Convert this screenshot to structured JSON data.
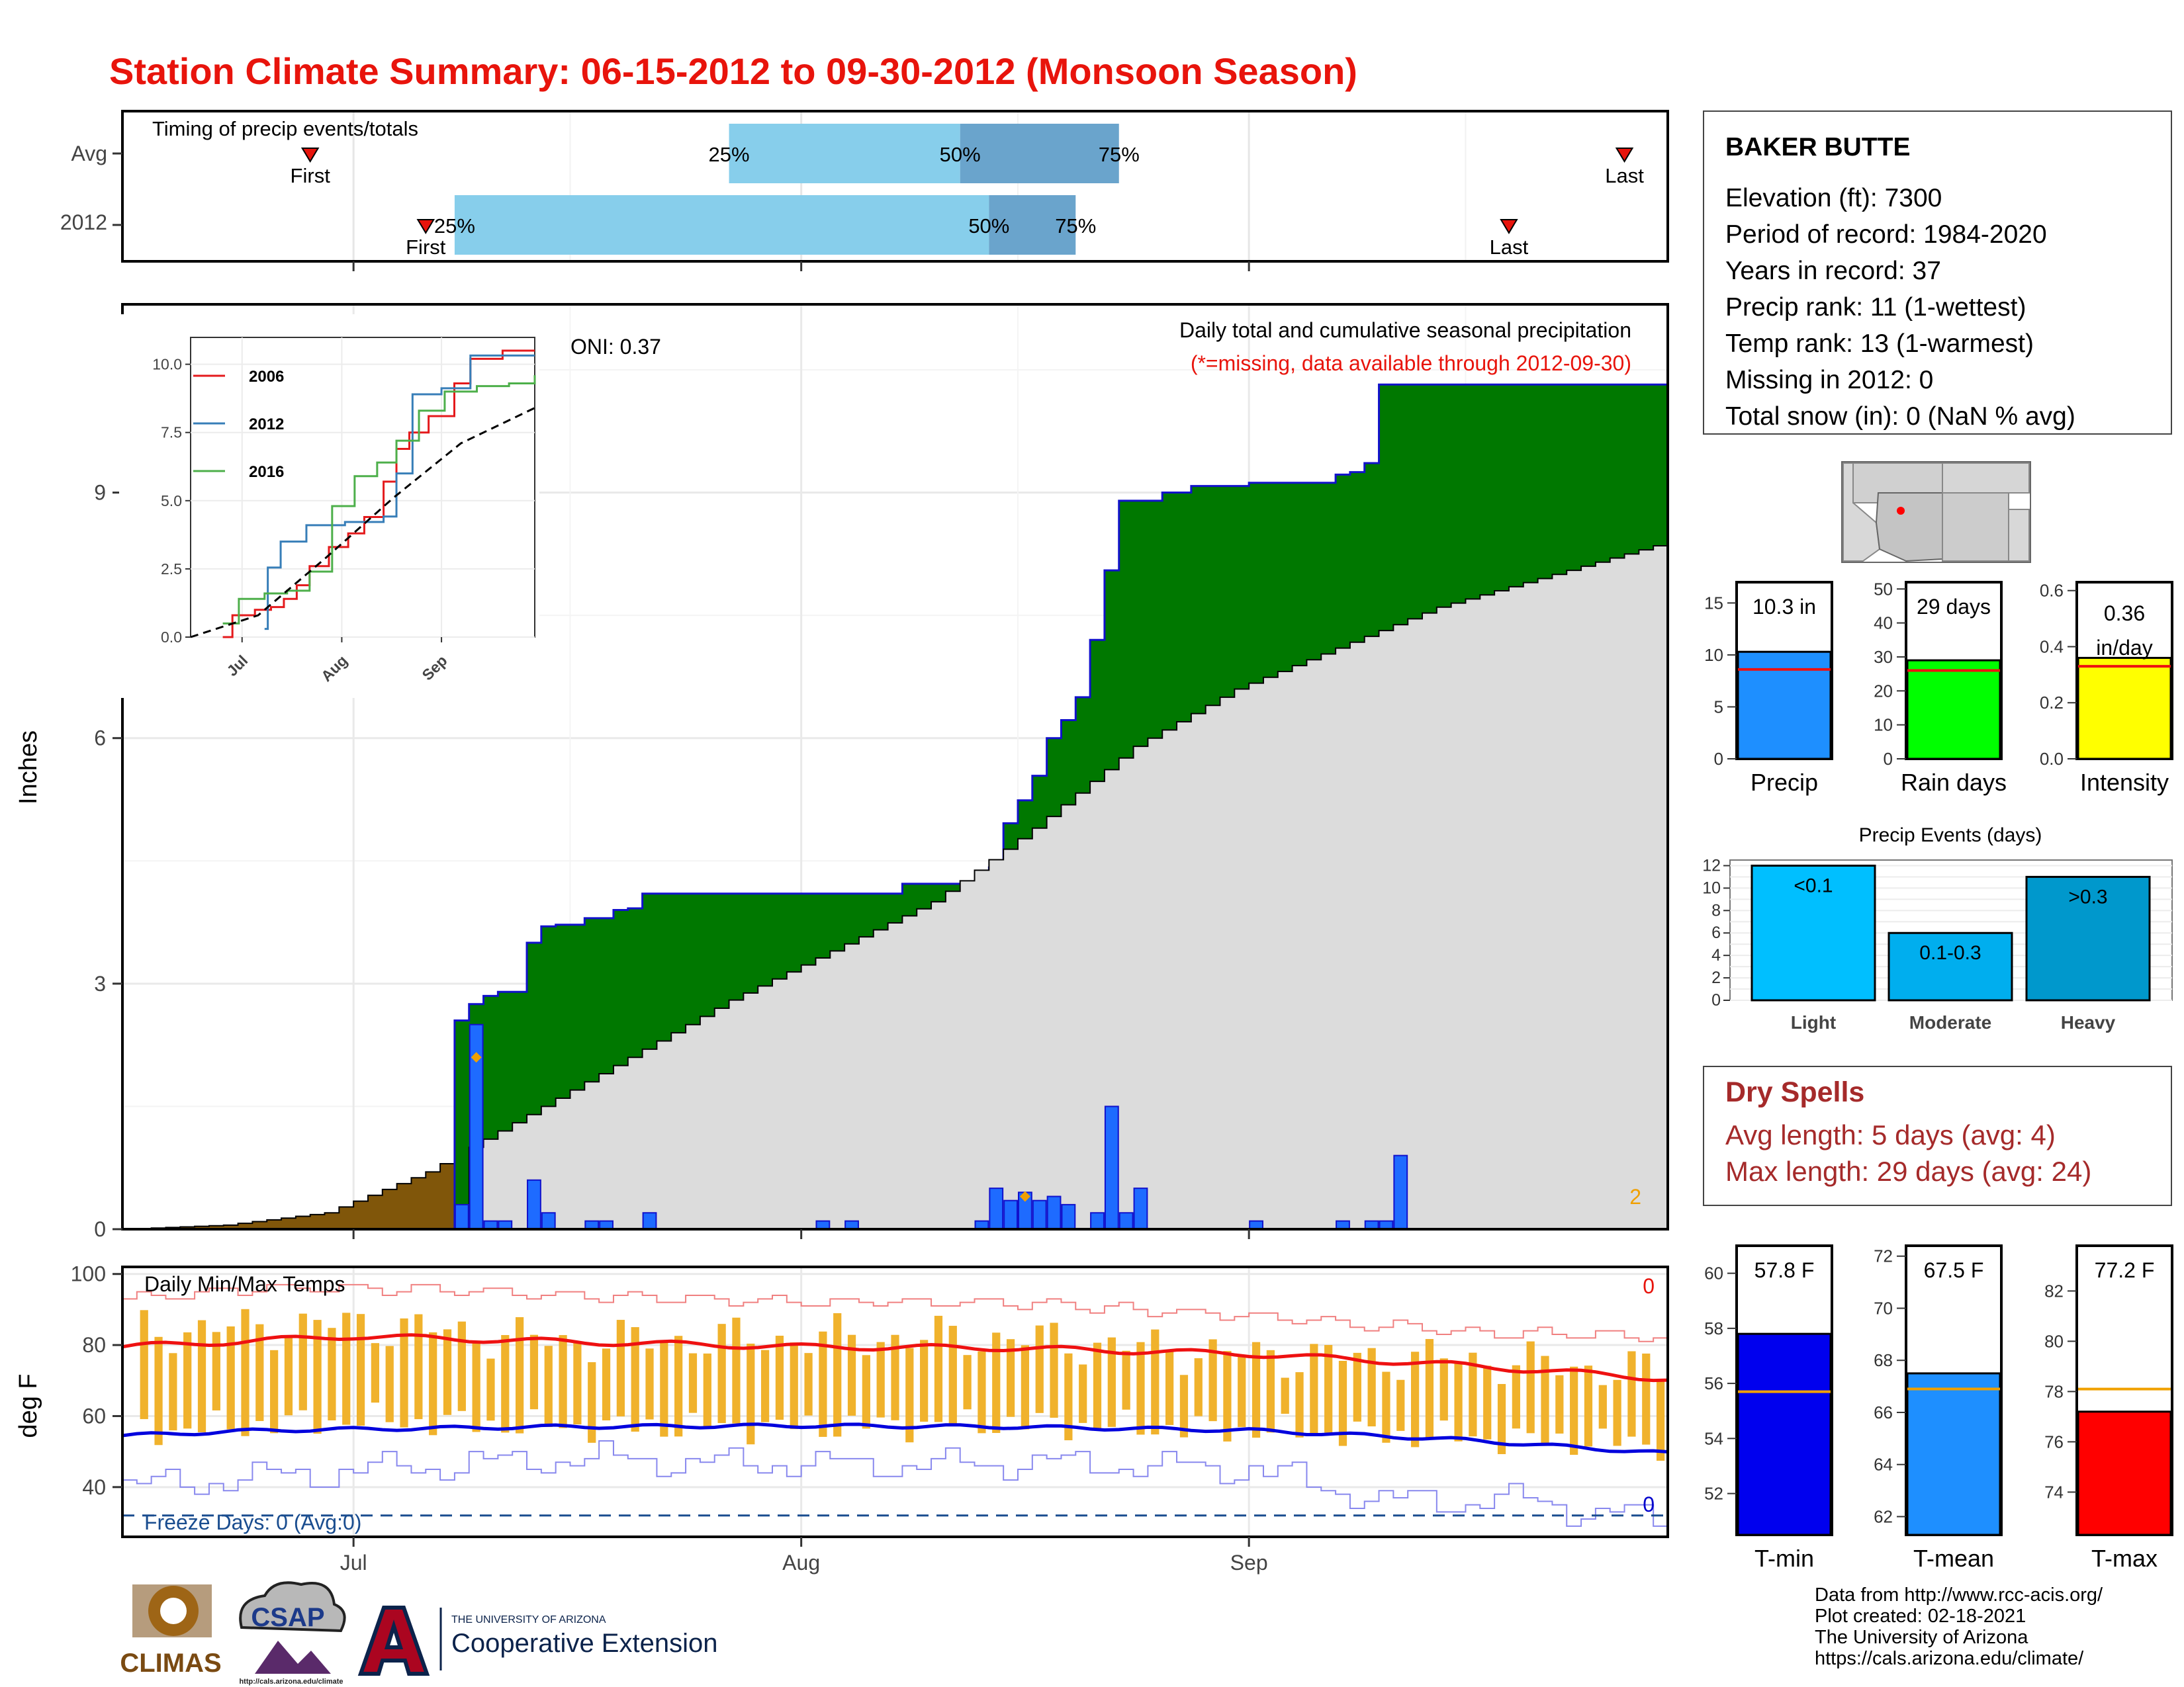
{
  "title": "Station Climate Summary: 06-15-2012 to 09-30-2012 (Monsoon Season)",
  "colors": {
    "title": "#e8140c",
    "cum_2012": "#007800",
    "cum_avg": "#dcdcdc",
    "early": "#80560a",
    "daily_bar": "#1e6bff",
    "outline": "#1111cc",
    "timing_light": "#87ceeb",
    "timing_dark": "#6aa4cc",
    "tmax": "#ee1111",
    "tmin": "#0000dd",
    "range_bar": "#f0b22c",
    "dry_spells": "#a52a2a"
  },
  "timing": {
    "title": "Timing of precip events/totals",
    "rows": [
      {
        "label": "Avg",
        "first": "First",
        "last": "Last",
        "p25": "25%",
        "p50": "50%",
        "p75": "75%",
        "first_date": "2012-06-28",
        "p25_date": "2012-07-27",
        "p50_date": "2012-08-12",
        "p75_date": "2012-08-23",
        "last_date": "2012-09-27"
      },
      {
        "label": "2012",
        "first": "First",
        "last": "Last",
        "p25": "25%",
        "p50": "50%",
        "p75": "75%",
        "first_date": "2012-07-06",
        "p25_date": "2012-07-08",
        "p50_date": "2012-08-14",
        "p75_date": "2012-08-20",
        "last_date": "2012-09-19"
      }
    ]
  },
  "precip": {
    "ylabel": "Inches",
    "caption": "Daily total and cumulative seasonal precipitation",
    "note": "(*=missing, data available through 2012-09-30)",
    "oni": "ONI: 0.37",
    "corner_count": "2",
    "yticks": [
      "0",
      "3",
      "6",
      "9"
    ],
    "ytick_values": [
      0,
      3,
      6,
      9
    ],
    "xticks": [
      "Jul",
      "Aug",
      "Sep"
    ],
    "ylim": [
      0,
      11.3
    ]
  },
  "inset": {
    "yticks": [
      "0.0",
      "2.5",
      "5.0",
      "7.5",
      "10.0"
    ],
    "xticks": [
      "Jul",
      "Aug",
      "Sep"
    ],
    "legend": [
      {
        "label": "2006",
        "color": "#e41a1c"
      },
      {
        "label": "2012",
        "color": "#377eb8"
      },
      {
        "label": "2016",
        "color": "#4daf4a"
      }
    ]
  },
  "temps": {
    "ylabel": "deg F",
    "title": "Daily Min/Max Temps",
    "freeze": "Freeze Days: 0 (Avg:0)",
    "count_top": "0",
    "count_bottom": "0",
    "yticks": [
      "40",
      "60",
      "80",
      "100"
    ],
    "ytick_values": [
      40,
      60,
      80,
      100
    ],
    "ylim": [
      26,
      102
    ]
  },
  "station": {
    "name": "BAKER BUTTE",
    "lines": [
      "Elevation (ft): 7300",
      "Period of record: 1984-2020",
      "Years in record: 37",
      "Precip rank: 11 (1-wettest)",
      "Temp rank: 13 (1-warmest)",
      "Missing in 2012: 0",
      "Total snow (in): 0 (NaN % avg)"
    ]
  },
  "summary_bars": [
    {
      "name": "Precip",
      "label_value": "10.3 in",
      "value": 10.3,
      "avg": 8.6,
      "ylim": [
        0,
        17
      ],
      "yticks": [
        "0",
        "5",
        "10",
        "15"
      ],
      "ytick_values": [
        0,
        5,
        10,
        15
      ],
      "color": "#1e8fff"
    },
    {
      "name": "Rain days",
      "label_value": "29 days",
      "value": 29,
      "avg": 26,
      "ylim": [
        0,
        52
      ],
      "yticks": [
        "0",
        "10",
        "20",
        "30",
        "40",
        "50"
      ],
      "ytick_values": [
        0,
        10,
        20,
        30,
        40,
        50
      ],
      "color": "#00ff00"
    },
    {
      "name": "Intensity",
      "label_value": "0.36",
      "label_value2": "in/day",
      "value": 0.36,
      "avg": 0.33,
      "ylim": [
        0,
        0.63
      ],
      "yticks": [
        "0.0",
        "0.2",
        "0.4",
        "0.6"
      ],
      "ytick_values": [
        0,
        0.2,
        0.4,
        0.6
      ],
      "color": "#ffff00"
    }
  ],
  "precip_events": {
    "title": "Precip Events (days)",
    "yticks": [
      "0",
      "2",
      "4",
      "6",
      "8",
      "10",
      "12"
    ],
    "ytick_values": [
      0,
      2,
      4,
      6,
      8,
      10,
      12
    ],
    "ylim": [
      0,
      12.5
    ],
    "bars": [
      {
        "category": "Light",
        "label": "<0.1",
        "value": 12,
        "color": "#00bfff"
      },
      {
        "category": "Moderate",
        "label": "0.1-0.3",
        "value": 6,
        "color": "#00aeee"
      },
      {
        "category": "Heavy",
        "label": ">0.3",
        "value": 11,
        "color": "#0098cc"
      }
    ]
  },
  "dry_spells": {
    "title": "Dry Spells",
    "avg_length": "Avg length: 5 days (avg: 4)",
    "max_length": "Max length: 29 days (avg: 24)"
  },
  "temp_bars": [
    {
      "name": "T-min",
      "label_value": "57.8 F",
      "value": 57.8,
      "avg": 55.7,
      "ylim": [
        50.5,
        61
      ],
      "yticks": [
        "52",
        "54",
        "56",
        "58",
        "60"
      ],
      "ytick_values": [
        52,
        54,
        56,
        58,
        60
      ],
      "color": "#0000ee"
    },
    {
      "name": "T-mean",
      "label_value": "67.5 F",
      "value": 67.5,
      "avg": 66.9,
      "ylim": [
        61.3,
        72.4
      ],
      "yticks": [
        "62",
        "64",
        "66",
        "68",
        "70",
        "72"
      ],
      "ytick_values": [
        62,
        64,
        66,
        68,
        70,
        72
      ],
      "color": "#1e8fff"
    },
    {
      "name": "T-max",
      "label_value": "77.2 F",
      "value": 77.2,
      "avg": 78.1,
      "ylim": [
        72.3,
        83.8
      ],
      "yticks": [
        "74",
        "76",
        "78",
        "80",
        "82"
      ],
      "ytick_values": [
        74,
        76,
        78,
        80,
        82
      ],
      "color": "#ff0000"
    }
  ],
  "footer": {
    "lines": [
      "Data from http://www.rcc-acis.org/",
      "Plot created: 02-18-2021",
      "The University of Arizona",
      "https://cals.arizona.edu/climate/"
    ],
    "climas": "CLIMAS",
    "csap": "CSAP",
    "csap_url": "http://cals.arizona.edu/climate",
    "ua_small": "THE UNIVERSITY OF ARIZONA",
    "ua_large": "Cooperative Extension"
  },
  "chart_data": [
    {
      "type": "area",
      "title": "Daily total and cumulative seasonal precipitation",
      "ylabel": "Inches",
      "x_range": [
        "2012-06-15",
        "2012-09-30"
      ],
      "ylim": [
        0,
        11.3
      ],
      "series": [
        {
          "name": "2012",
          "dates": [
            "2012-07-08",
            "2012-07-09",
            "2012-07-10",
            "2012-07-11",
            "2012-07-13",
            "2012-07-14",
            "2012-07-15",
            "2012-07-17",
            "2012-07-19",
            "2012-07-20",
            "2012-07-21",
            "2012-07-25",
            "2012-08-08",
            "2012-08-09",
            "2012-08-14",
            "2012-08-15",
            "2012-08-16",
            "2012-08-17",
            "2012-08-18",
            "2012-08-19",
            "2012-08-20",
            "2012-08-21",
            "2012-08-22",
            "2012-08-23",
            "2012-08-26",
            "2012-08-27",
            "2012-08-28",
            "2012-09-01",
            "2012-09-07",
            "2012-09-08",
            "2012-09-09",
            "2012-09-10"
          ],
          "values": [
            2.55,
            2.75,
            2.85,
            2.9,
            3.5,
            3.7,
            3.72,
            3.8,
            3.9,
            3.92,
            4.1,
            4.1,
            4.22,
            4.22,
            4.42,
            4.96,
            5.24,
            5.54,
            6.0,
            6.22,
            6.5,
            7.2,
            8.05,
            8.9,
            9.0,
            9.0,
            9.08,
            9.12,
            9.22,
            9.25,
            9.36,
            10.32
          ]
        },
        {
          "name": "Avg",
          "dates": [
            "2012-06-15",
            "2012-06-22",
            "2012-06-29",
            "2012-07-06",
            "2012-07-13",
            "2012-07-20",
            "2012-07-27",
            "2012-08-03",
            "2012-08-10",
            "2012-08-17",
            "2012-08-24",
            "2012-08-31",
            "2012-09-07",
            "2012-09-14",
            "2012-09-21",
            "2012-09-30"
          ],
          "values": [
            0.0,
            0.05,
            0.2,
            0.7,
            1.4,
            2.1,
            2.8,
            3.4,
            4.0,
            4.9,
            5.9,
            6.6,
            7.1,
            7.6,
            7.95,
            8.4
          ]
        }
      ],
      "daily_precip": {
        "dates": [
          "2012-07-08",
          "2012-07-09",
          "2012-07-10",
          "2012-07-11",
          "2012-07-13",
          "2012-07-14",
          "2012-07-17",
          "2012-07-18",
          "2012-07-21",
          "2012-08-02",
          "2012-08-04",
          "2012-08-13",
          "2012-08-14",
          "2012-08-15",
          "2012-08-16",
          "2012-08-17",
          "2012-08-18",
          "2012-08-19",
          "2012-08-21",
          "2012-08-22",
          "2012-08-23",
          "2012-08-24",
          "2012-09-01",
          "2012-09-07",
          "2012-09-09",
          "2012-09-10",
          "2012-09-11"
        ],
        "values": [
          0.3,
          2.5,
          0.1,
          0.1,
          0.6,
          0.2,
          0.1,
          0.1,
          0.2,
          0.1,
          0.1,
          0.1,
          0.5,
          0.35,
          0.45,
          0.35,
          0.4,
          0.3,
          0.2,
          1.5,
          0.2,
          0.5,
          0.1,
          0.1,
          0.1,
          0.1,
          0.9
        ]
      },
      "daily_median_markers": {
        "dates": [
          "2012-07-09",
          "2012-08-16"
        ],
        "values": [
          2.1,
          0.4
        ]
      }
    },
    {
      "type": "line",
      "title": "",
      "ylim": [
        0,
        10.5
      ],
      "x_range": [
        "2012-06-15",
        "2012-09-30"
      ],
      "series": [
        {
          "name": "2006",
          "dates": [
            "2012-06-25",
            "2012-06-28",
            "2012-07-05",
            "2012-07-10",
            "2012-07-14",
            "2012-07-18",
            "2012-07-22",
            "2012-07-28",
            "2012-08-03",
            "2012-08-08",
            "2012-08-14",
            "2012-08-18",
            "2012-08-22",
            "2012-08-28",
            "2012-09-05",
            "2012-09-10",
            "2012-09-20",
            "2012-09-30"
          ],
          "values": [
            0.0,
            0.8,
            1.0,
            1.1,
            1.4,
            1.9,
            2.6,
            3.3,
            3.8,
            4.4,
            5.7,
            6.9,
            7.5,
            8.1,
            9.3,
            10.2,
            10.5,
            10.5
          ]
        },
        {
          "name": "2012",
          "dates": [
            "2012-07-08",
            "2012-07-09",
            "2012-07-13",
            "2012-07-21",
            "2012-08-02",
            "2012-08-14",
            "2012-08-18",
            "2012-08-23",
            "2012-09-01",
            "2012-09-10",
            "2012-09-30"
          ],
          "values": [
            0.3,
            2.55,
            3.5,
            4.1,
            4.22,
            4.42,
            6.0,
            8.9,
            9.12,
            10.32,
            10.32
          ]
        },
        {
          "name": "2016",
          "dates": [
            "2012-06-25",
            "2012-06-30",
            "2012-07-08",
            "2012-07-15",
            "2012-07-22",
            "2012-07-29",
            "2012-08-05",
            "2012-08-12",
            "2012-08-18",
            "2012-08-25",
            "2012-09-02",
            "2012-09-12",
            "2012-09-22",
            "2012-09-30"
          ],
          "values": [
            0.5,
            1.4,
            1.6,
            1.7,
            2.4,
            4.8,
            5.9,
            6.4,
            7.2,
            8.3,
            9.0,
            9.2,
            9.3,
            9.6
          ]
        },
        {
          "name": "Avg",
          "dates": [
            "2012-06-15",
            "2012-07-06",
            "2012-07-27",
            "2012-08-17",
            "2012-09-07",
            "2012-09-30"
          ],
          "values": [
            0.0,
            0.8,
            2.9,
            5.1,
            7.1,
            8.4
          ]
        }
      ]
    },
    {
      "type": "line",
      "title": "Daily Min/Max Temps",
      "ylabel": "deg F",
      "ylim": [
        26,
        102
      ],
      "x_range": [
        "2012-06-15",
        "2012-09-30"
      ],
      "series": [
        {
          "name": "Avg Tmax",
          "dates": [
            "2012-06-15",
            "2012-07-01",
            "2012-07-15",
            "2012-08-01",
            "2012-08-15",
            "2012-09-01",
            "2012-09-15",
            "2012-09-30"
          ],
          "values": [
            79.5,
            82.5,
            81.0,
            79.5,
            79.2,
            77.5,
            74.5,
            70.5
          ]
        },
        {
          "name": "Avg Tmin",
          "dates": [
            "2012-06-15",
            "2012-06-25",
            "2012-07-15",
            "2012-08-01",
            "2012-08-15",
            "2012-09-01",
            "2012-09-15",
            "2012-09-30"
          ],
          "values": [
            54.5,
            56.0,
            57.0,
            57.3,
            57.0,
            56.0,
            53.5,
            49.5
          ]
        },
        {
          "name": "Record high",
          "dates": [
            "2012-06-15",
            "2012-06-25",
            "2012-07-01",
            "2012-07-15",
            "2012-08-01",
            "2012-08-15",
            "2012-09-01",
            "2012-09-15",
            "2012-09-30"
          ],
          "values": [
            93,
            96,
            96,
            94,
            92,
            92,
            88,
            84,
            82
          ]
        },
        {
          "name": "Record low",
          "dates": [
            "2012-06-15",
            "2012-06-22",
            "2012-06-29",
            "2012-07-06",
            "2012-07-15",
            "2012-07-25",
            "2012-08-05",
            "2012-08-15",
            "2012-08-25",
            "2012-09-01",
            "2012-09-10",
            "2012-09-20",
            "2012-09-30"
          ],
          "values": [
            40,
            42,
            44,
            46,
            48,
            47,
            46,
            47,
            46,
            45,
            36,
            36,
            30
          ]
        }
      ],
      "daily_range": {
        "dates": [
          "2012-06-17",
          "2012-07-01",
          "2012-07-15",
          "2012-08-01",
          "2012-08-15",
          "2012-09-01",
          "2012-09-15",
          "2012-09-30"
        ],
        "low": [
          56,
          59,
          57,
          57,
          58,
          56,
          54,
          52
        ],
        "high": [
          84,
          86,
          81,
          82,
          82,
          77,
          76,
          72
        ]
      },
      "freeze_line": 32
    },
    {
      "type": "bar",
      "title": "Precip Events (days)",
      "categories": [
        "Light",
        "Moderate",
        "Heavy"
      ],
      "values": [
        12,
        6,
        11
      ],
      "ylim": [
        0,
        12.5
      ]
    },
    {
      "type": "bar",
      "categories": [
        "Precip",
        "Rain days",
        "Intensity",
        "T-min",
        "T-mean",
        "T-max"
      ],
      "values": [
        10.3,
        29,
        0.36,
        57.8,
        67.5,
        77.2
      ],
      "averages": [
        8.6,
        26,
        0.33,
        55.7,
        66.9,
        78.1
      ]
    }
  ]
}
